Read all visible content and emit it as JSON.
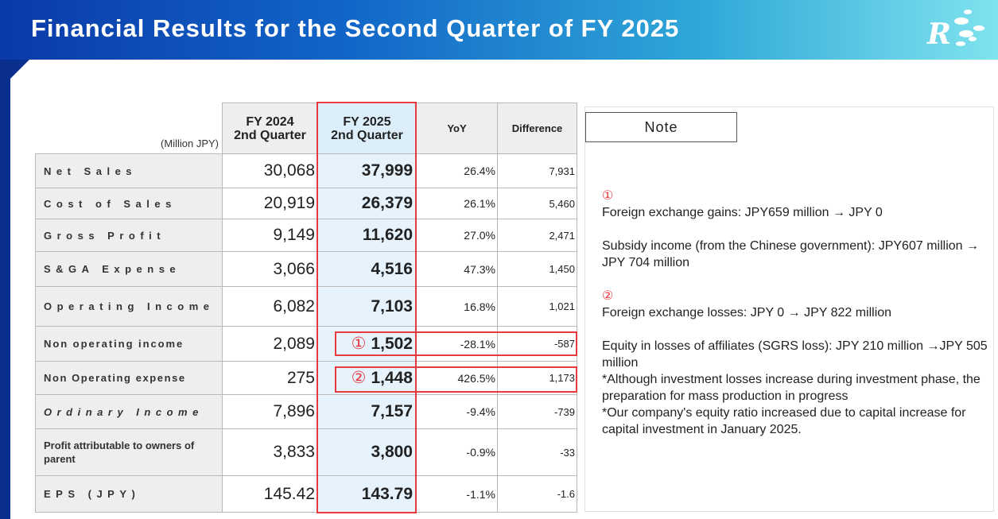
{
  "header": {
    "title": "Financial Results for the Second Quarter of FY 2025",
    "logo_letter": "R"
  },
  "table": {
    "unit": "(Million JPY)",
    "columns": {
      "fy2024": [
        "FY 2024",
        "2nd Quarter"
      ],
      "fy2025": [
        "FY 2025",
        "2nd Quarter"
      ],
      "yoy": "YoY",
      "diff": "Difference"
    },
    "rows": [
      {
        "label": "Net Sales",
        "fy2024": "30,068",
        "fy2025": "37,999",
        "yoy": "26.4%",
        "diff": "7,931"
      },
      {
        "label": "Cost of Sales",
        "fy2024": "20,919",
        "fy2025": "26,379",
        "yoy": "26.1%",
        "diff": "5,460"
      },
      {
        "label": "Gross Profit",
        "fy2024": "9,149",
        "fy2025": "11,620",
        "yoy": "27.0%",
        "diff": "2,471"
      },
      {
        "label": "S&GA Expense",
        "fy2024": "3,066",
        "fy2025": "4,516",
        "yoy": "47.3%",
        "diff": "1,450"
      },
      {
        "label": "Operating Income",
        "fy2024": "6,082",
        "fy2025": "7,103",
        "yoy": "16.8%",
        "diff": "1,021"
      },
      {
        "label": "Non operating income",
        "fy2024": "2,089",
        "fy2025": "1,502",
        "marker": "①",
        "yoy": "-28.1%",
        "diff": "-587"
      },
      {
        "label": "Non Operating expense",
        "fy2024": "275",
        "fy2025": "1,448",
        "marker": "②",
        "yoy": "426.5%",
        "diff": "1,173"
      },
      {
        "label": "Ordinary Income",
        "fy2024": "7,896",
        "fy2025": "7,157",
        "yoy": "-9.4%",
        "diff": "-739"
      },
      {
        "label": "Profit attributable to owners of parent",
        "fy2024": "3,833",
        "fy2025": "3,800",
        "yoy": "-0.9%",
        "diff": "-33"
      },
      {
        "label": "EPS (JPY)",
        "fy2024": "145.42",
        "fy2025": "143.79",
        "yoy": "-1.1%",
        "diff": "-1.6"
      }
    ]
  },
  "note": {
    "title": "Note",
    "marker1": "①",
    "line1": "Foreign exchange gains: JPY659 million → JPY 0",
    "line2": "Subsidy income (from the Chinese government): JPY607 million → JPY 704 million",
    "marker2": "②",
    "line3": "Foreign exchange losses: JPY 0 → JPY 822 million",
    "line4": "Equity in losses of affiliates (SGRS loss): JPY 210 million →JPY 505 million",
    "line5": "*Although investment losses increase during investment phase, the preparation for mass production in progress",
    "line6": "*Our company's equity ratio increased due to capital increase for capital investment in January 2025."
  }
}
